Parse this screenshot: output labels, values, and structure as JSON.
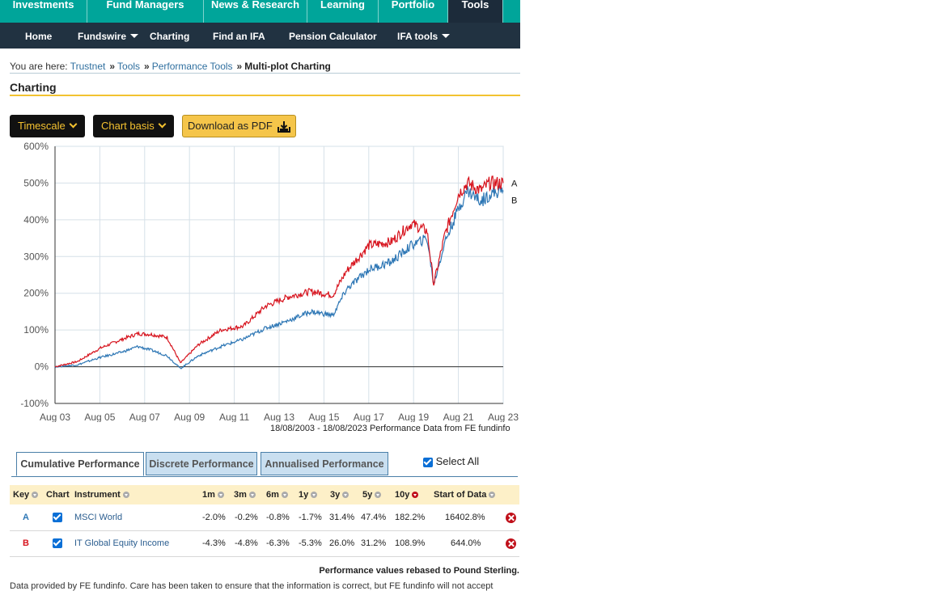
{
  "top_nav": [
    "Investments",
    "Fund Managers",
    "News & Research",
    "Learning",
    "Portfolio",
    "Tools"
  ],
  "sub_nav": [
    {
      "label": "Home",
      "dropdown": false
    },
    {
      "label": "Fundswire",
      "dropdown": true
    },
    {
      "label": "Charting",
      "dropdown": false
    },
    {
      "label": "Find an IFA",
      "dropdown": false
    },
    {
      "label": "Pension Calculator",
      "dropdown": false
    },
    {
      "label": "IFA tools",
      "dropdown": true
    }
  ],
  "breadcrumb": {
    "prefix": "You are here:",
    "links": [
      "Trustnet",
      "Tools",
      "Performance Tools"
    ],
    "current": "Multi-plot Charting"
  },
  "page_title": "Charting",
  "controls": {
    "timescale": "Timescale",
    "chart_basis": "Chart basis",
    "download_pdf": "Download as PDF"
  },
  "chart_note": "18/08/2003 - 18/08/2023 Performance Data from FE fundinfo",
  "colors": {
    "series_a": "#d7141e",
    "series_b": "#2e77b5",
    "accent": "#f2c330",
    "teal": "#00a59a",
    "navy": "#213241"
  },
  "chart_data": {
    "type": "line",
    "ylim": [
      -100,
      600
    ],
    "y_ticks": [
      "600%",
      "500%",
      "400%",
      "300%",
      "200%",
      "100%",
      "0%",
      "-100%"
    ],
    "x_ticks": [
      "Aug 03",
      "Aug 05",
      "Aug 07",
      "Aug 09",
      "Aug 11",
      "Aug 13",
      "Aug 15",
      "Aug 17",
      "Aug 19",
      "Aug 21",
      "Aug 23"
    ],
    "x": [
      2003.6,
      2004.6,
      2005.6,
      2006.6,
      2007.3,
      2007.9,
      2008.6,
      2009.2,
      2010.0,
      2011.0,
      2012.0,
      2013.0,
      2014.0,
      2015.0,
      2016.0,
      2016.6,
      2017.6,
      2018.6,
      2019.5,
      2020.2,
      2020.5,
      2021.0,
      2021.6,
      2022.0,
      2022.6,
      2023.0,
      2023.6
    ],
    "series": [
      {
        "name": "A",
        "values": [
          0,
          14,
          50,
          75,
          90,
          88,
          80,
          10,
          60,
          100,
          110,
          165,
          190,
          205,
          195,
          260,
          330,
          340,
          390,
          370,
          225,
          360,
          470,
          500,
          480,
          500,
          500
        ]
      },
      {
        "name": "B",
        "values": [
          0,
          5,
          25,
          40,
          55,
          45,
          30,
          -5,
          30,
          55,
          75,
          105,
          125,
          150,
          140,
          210,
          265,
          285,
          330,
          350,
          225,
          340,
          430,
          480,
          450,
          470,
          480
        ]
      }
    ],
    "end_labels": [
      "A",
      "B"
    ],
    "grid": true
  },
  "tabs": [
    "Cumulative Performance",
    "Discrete Performance",
    "Annualised Performance"
  ],
  "select_all": "Select All",
  "table": {
    "headers": [
      "Key",
      "Chart",
      "Instrument",
      "1m",
      "3m",
      "6m",
      "1y",
      "3y",
      "5y",
      "10y",
      "Start of Data"
    ],
    "rows": [
      {
        "key": "A",
        "instrument": "MSCI World",
        "values": [
          "-2.0%",
          "-0.2%",
          "-0.8%",
          "-1.7%",
          "31.4%",
          "47.4%",
          "182.2%",
          "16402.8%"
        ]
      },
      {
        "key": "B",
        "instrument": "IT Global Equity Income",
        "values": [
          "-4.3%",
          "-4.8%",
          "-6.3%",
          "-5.3%",
          "26.0%",
          "31.2%",
          "108.9%",
          "644.0%"
        ]
      }
    ]
  },
  "footnote": "Performance values rebased to Pound Sterling.",
  "footer_cut": "Data provided by FE fundinfo. Care has been taken to ensure that the information is correct, but FE fundinfo will not accept"
}
